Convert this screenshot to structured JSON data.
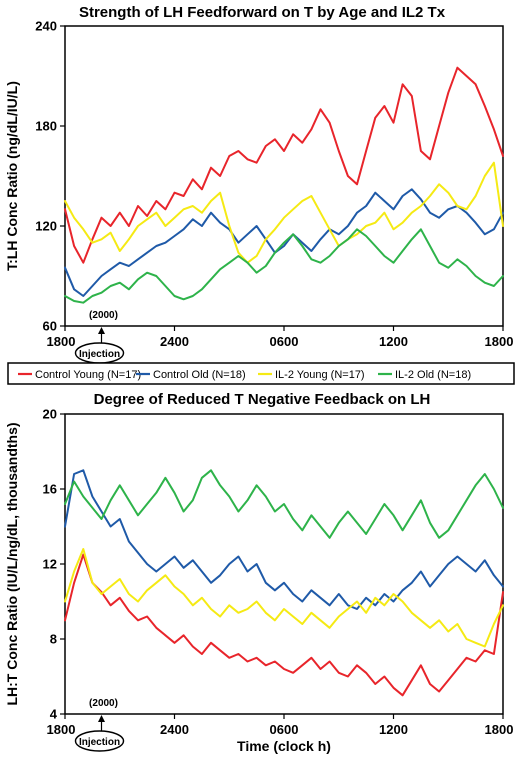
{
  "legend": [
    {
      "name": "Control Young (N=17)",
      "color": "#e8252b"
    },
    {
      "name": "Control Old (N=18)",
      "color": "#1f5aa8"
    },
    {
      "name": "IL-2 Young (N=17)",
      "color": "#f5ea14"
    },
    {
      "name": "IL-2 Old (N=18)",
      "color": "#2eb34a"
    }
  ],
  "chart_data": [
    {
      "type": "line",
      "title": "Strength of LH Feedforward on T by Age and IL2 Tx",
      "xlabel": "",
      "ylabel": "T:LH Conc Ratio (ng/dL/IU/L)",
      "ylim": [
        60,
        240
      ],
      "yticks": [
        60,
        120,
        180,
        240
      ],
      "xlim": [
        0,
        24
      ],
      "xticks": [
        0,
        6,
        12,
        18,
        24
      ],
      "xticklabels": [
        "1800",
        "2400",
        "0600",
        "1200",
        "1800"
      ],
      "grid": false,
      "annotation": {
        "time_label": "(2000)",
        "label": "Injection",
        "x": 2
      },
      "series": [
        {
          "name": "Control Young (N=17)",
          "color": "#e8252b",
          "x": [
            0,
            0.5,
            1,
            1.5,
            2,
            2.5,
            3,
            3.5,
            4,
            4.5,
            5,
            5.5,
            6,
            6.5,
            7,
            7.5,
            8,
            8.5,
            9,
            9.5,
            10,
            10.5,
            11,
            11.5,
            12,
            12.5,
            13,
            13.5,
            14,
            14.5,
            15,
            15.5,
            16,
            16.5,
            17,
            17.5,
            18,
            18.5,
            19,
            19.5,
            20,
            20.5,
            21,
            21.5,
            22,
            22.5,
            23,
            23.5,
            24
          ],
          "values": [
            130,
            108,
            98,
            112,
            125,
            120,
            128,
            120,
            132,
            126,
            135,
            130,
            140,
            138,
            148,
            142,
            155,
            150,
            162,
            165,
            160,
            158,
            168,
            172,
            165,
            175,
            170,
            178,
            190,
            182,
            165,
            150,
            145,
            165,
            185,
            192,
            182,
            205,
            198,
            165,
            160,
            180,
            200,
            215,
            210,
            205,
            192,
            178,
            162
          ]
        },
        {
          "name": "Control Old (N=18)",
          "color": "#1f5aa8",
          "x": [
            0,
            0.5,
            1,
            1.5,
            2,
            2.5,
            3,
            3.5,
            4,
            4.5,
            5,
            5.5,
            6,
            6.5,
            7,
            7.5,
            8,
            8.5,
            9,
            9.5,
            10,
            10.5,
            11,
            11.5,
            12,
            12.5,
            13,
            13.5,
            14,
            14.5,
            15,
            15.5,
            16,
            16.5,
            17,
            17.5,
            18,
            18.5,
            19,
            19.5,
            20,
            20.5,
            21,
            21.5,
            22,
            22.5,
            23,
            23.5,
            24
          ],
          "values": [
            95,
            82,
            78,
            84,
            90,
            94,
            98,
            96,
            100,
            104,
            108,
            110,
            114,
            118,
            124,
            120,
            128,
            122,
            118,
            110,
            115,
            120,
            112,
            104,
            108,
            115,
            110,
            105,
            112,
            118,
            115,
            120,
            128,
            132,
            140,
            135,
            130,
            138,
            142,
            136,
            128,
            125,
            130,
            132,
            128,
            122,
            115,
            118,
            128
          ]
        },
        {
          "name": "IL-2 Young (N=17)",
          "color": "#f5ea14",
          "x": [
            0,
            0.5,
            1,
            1.5,
            2,
            2.5,
            3,
            3.5,
            4,
            4.5,
            5,
            5.5,
            6,
            6.5,
            7,
            7.5,
            8,
            8.5,
            9,
            9.5,
            10,
            10.5,
            11,
            11.5,
            12,
            12.5,
            13,
            13.5,
            14,
            14.5,
            15,
            15.5,
            16,
            16.5,
            17,
            17.5,
            18,
            18.5,
            19,
            19.5,
            20,
            20.5,
            21,
            21.5,
            22,
            22.5,
            23,
            23.5,
            24
          ],
          "values": [
            135,
            125,
            118,
            110,
            112,
            116,
            105,
            112,
            120,
            124,
            128,
            120,
            125,
            130,
            132,
            128,
            135,
            140,
            120,
            104,
            98,
            102,
            112,
            118,
            125,
            130,
            135,
            138,
            128,
            118,
            108,
            112,
            115,
            120,
            122,
            128,
            118,
            122,
            128,
            132,
            138,
            145,
            140,
            132,
            130,
            138,
            150,
            158,
            120
          ]
        },
        {
          "name": "IL-2 Old (N=18)",
          "color": "#2eb34a",
          "x": [
            0,
            0.5,
            1,
            1.5,
            2,
            2.5,
            3,
            3.5,
            4,
            4.5,
            5,
            5.5,
            6,
            6.5,
            7,
            7.5,
            8,
            8.5,
            9,
            9.5,
            10,
            10.5,
            11,
            11.5,
            12,
            12.5,
            13,
            13.5,
            14,
            14.5,
            15,
            15.5,
            16,
            16.5,
            17,
            17.5,
            18,
            18.5,
            19,
            19.5,
            20,
            20.5,
            21,
            21.5,
            22,
            22.5,
            23,
            23.5,
            24
          ],
          "values": [
            78,
            75,
            74,
            78,
            80,
            84,
            86,
            82,
            88,
            92,
            90,
            84,
            78,
            76,
            78,
            82,
            88,
            94,
            98,
            102,
            98,
            92,
            96,
            104,
            110,
            115,
            108,
            100,
            98,
            102,
            108,
            112,
            118,
            114,
            108,
            102,
            98,
            105,
            112,
            118,
            108,
            98,
            95,
            100,
            96,
            90,
            86,
            84,
            90
          ]
        }
      ]
    },
    {
      "type": "line",
      "title": "Degree of Reduced T Negative Feedback on LH",
      "xlabel": "Time (clock h)",
      "ylabel": "LH:T Conc Ratio (IU/L/ng/dL, thousandths)",
      "ylim": [
        4,
        20
      ],
      "yticks": [
        4,
        8,
        12,
        16,
        20
      ],
      "xlim": [
        0,
        24
      ],
      "xticks": [
        0,
        6,
        12,
        18,
        24
      ],
      "xticklabels": [
        "1800",
        "2400",
        "0600",
        "1200",
        "1800"
      ],
      "grid": false,
      "annotation": {
        "time_label": "(2000)",
        "label": "Injection",
        "x": 2
      },
      "series": [
        {
          "name": "Control Young (N=17)",
          "color": "#e8252b",
          "x": [
            0,
            0.5,
            1,
            1.5,
            2,
            2.5,
            3,
            3.5,
            4,
            4.5,
            5,
            5.5,
            6,
            6.5,
            7,
            7.5,
            8,
            8.5,
            9,
            9.5,
            10,
            10.5,
            11,
            11.5,
            12,
            12.5,
            13,
            13.5,
            14,
            14.5,
            15,
            15.5,
            16,
            16.5,
            17,
            17.5,
            18,
            18.5,
            19,
            19.5,
            20,
            20.5,
            21,
            21.5,
            22,
            22.5,
            23,
            23.5,
            24
          ],
          "values": [
            9,
            11,
            12.5,
            11,
            10.5,
            9.8,
            10.2,
            9.5,
            9,
            9.2,
            8.6,
            8.2,
            7.8,
            8.2,
            7.6,
            7.2,
            7.8,
            7.4,
            7,
            7.2,
            6.8,
            7,
            6.6,
            6.8,
            6.4,
            6.2,
            6.6,
            7,
            6.4,
            6.8,
            6.2,
            6,
            6.6,
            6.2,
            5.6,
            6,
            5.4,
            5,
            5.8,
            6.6,
            5.6,
            5.2,
            5.8,
            6.4,
            7,
            6.8,
            7.4,
            7.2,
            10.5
          ]
        },
        {
          "name": "Control Old (N=18)",
          "color": "#1f5aa8",
          "x": [
            0,
            0.5,
            1,
            1.5,
            2,
            2.5,
            3,
            3.5,
            4,
            4.5,
            5,
            5.5,
            6,
            6.5,
            7,
            7.5,
            8,
            8.5,
            9,
            9.5,
            10,
            10.5,
            11,
            11.5,
            12,
            12.5,
            13,
            13.5,
            14,
            14.5,
            15,
            15.5,
            16,
            16.5,
            17,
            17.5,
            18,
            18.5,
            19,
            19.5,
            20,
            20.5,
            21,
            21.5,
            22,
            22.5,
            23,
            23.5,
            24
          ],
          "values": [
            14,
            16.8,
            17,
            15.6,
            14.8,
            14,
            14.4,
            13.2,
            12.6,
            12,
            11.6,
            12,
            12.4,
            11.8,
            12.2,
            11.6,
            11,
            11.4,
            12,
            12.4,
            11.6,
            12,
            11,
            10.6,
            11,
            10.4,
            10,
            10.6,
            10.2,
            9.8,
            10.4,
            9.8,
            9.6,
            10.2,
            9.8,
            10.4,
            10,
            10.6,
            11,
            11.6,
            10.8,
            11.4,
            12,
            12.4,
            12,
            11.6,
            12.2,
            11.4,
            10.8
          ]
        },
        {
          "name": "IL-2 Young (N=17)",
          "color": "#f5ea14",
          "x": [
            0,
            0.5,
            1,
            1.5,
            2,
            2.5,
            3,
            3.5,
            4,
            4.5,
            5,
            5.5,
            6,
            6.5,
            7,
            7.5,
            8,
            8.5,
            9,
            9.5,
            10,
            10.5,
            11,
            11.5,
            12,
            12.5,
            13,
            13.5,
            14,
            14.5,
            15,
            15.5,
            16,
            16.5,
            17,
            17.5,
            18,
            18.5,
            19,
            19.5,
            20,
            20.5,
            21,
            21.5,
            22,
            22.5,
            23,
            23.5,
            24
          ],
          "values": [
            10,
            11.6,
            12.8,
            11,
            10.4,
            10.8,
            11.2,
            10.4,
            10,
            10.6,
            11,
            11.4,
            10.8,
            10.4,
            9.8,
            10.2,
            9.6,
            9.2,
            9.8,
            9.4,
            9.6,
            10,
            9.4,
            9,
            9.6,
            9.2,
            8.8,
            9.4,
            9,
            8.6,
            9.2,
            9.6,
            10,
            9.4,
            10.2,
            9.8,
            10.4,
            10,
            9.4,
            9,
            8.6,
            9,
            8.4,
            8.8,
            8,
            7.8,
            7.6,
            8.8,
            9.8
          ]
        },
        {
          "name": "IL-2 Old (N=18)",
          "color": "#2eb34a",
          "x": [
            0,
            0.5,
            1,
            1.5,
            2,
            2.5,
            3,
            3.5,
            4,
            4.5,
            5,
            5.5,
            6,
            6.5,
            7,
            7.5,
            8,
            8.5,
            9,
            9.5,
            10,
            10.5,
            11,
            11.5,
            12,
            12.5,
            13,
            13.5,
            14,
            14.5,
            15,
            15.5,
            16,
            16.5,
            17,
            17.5,
            18,
            18.5,
            19,
            19.5,
            20,
            20.5,
            21,
            21.5,
            22,
            22.5,
            23,
            23.5,
            24
          ],
          "values": [
            15.2,
            16.4,
            15.6,
            15,
            14.4,
            15.4,
            16.2,
            15.4,
            14.6,
            15.2,
            15.8,
            16.6,
            15.8,
            14.8,
            15.4,
            16.6,
            17,
            16.2,
            15.6,
            14.8,
            15.4,
            16.2,
            15.6,
            14.8,
            15.2,
            14.4,
            13.8,
            14.6,
            14,
            13.4,
            14.2,
            14.8,
            14.2,
            13.6,
            14.4,
            15.2,
            14.6,
            13.8,
            14.6,
            15.4,
            14.2,
            13.4,
            13.8,
            14.6,
            15.4,
            16.2,
            16.8,
            16,
            15
          ]
        }
      ]
    }
  ]
}
